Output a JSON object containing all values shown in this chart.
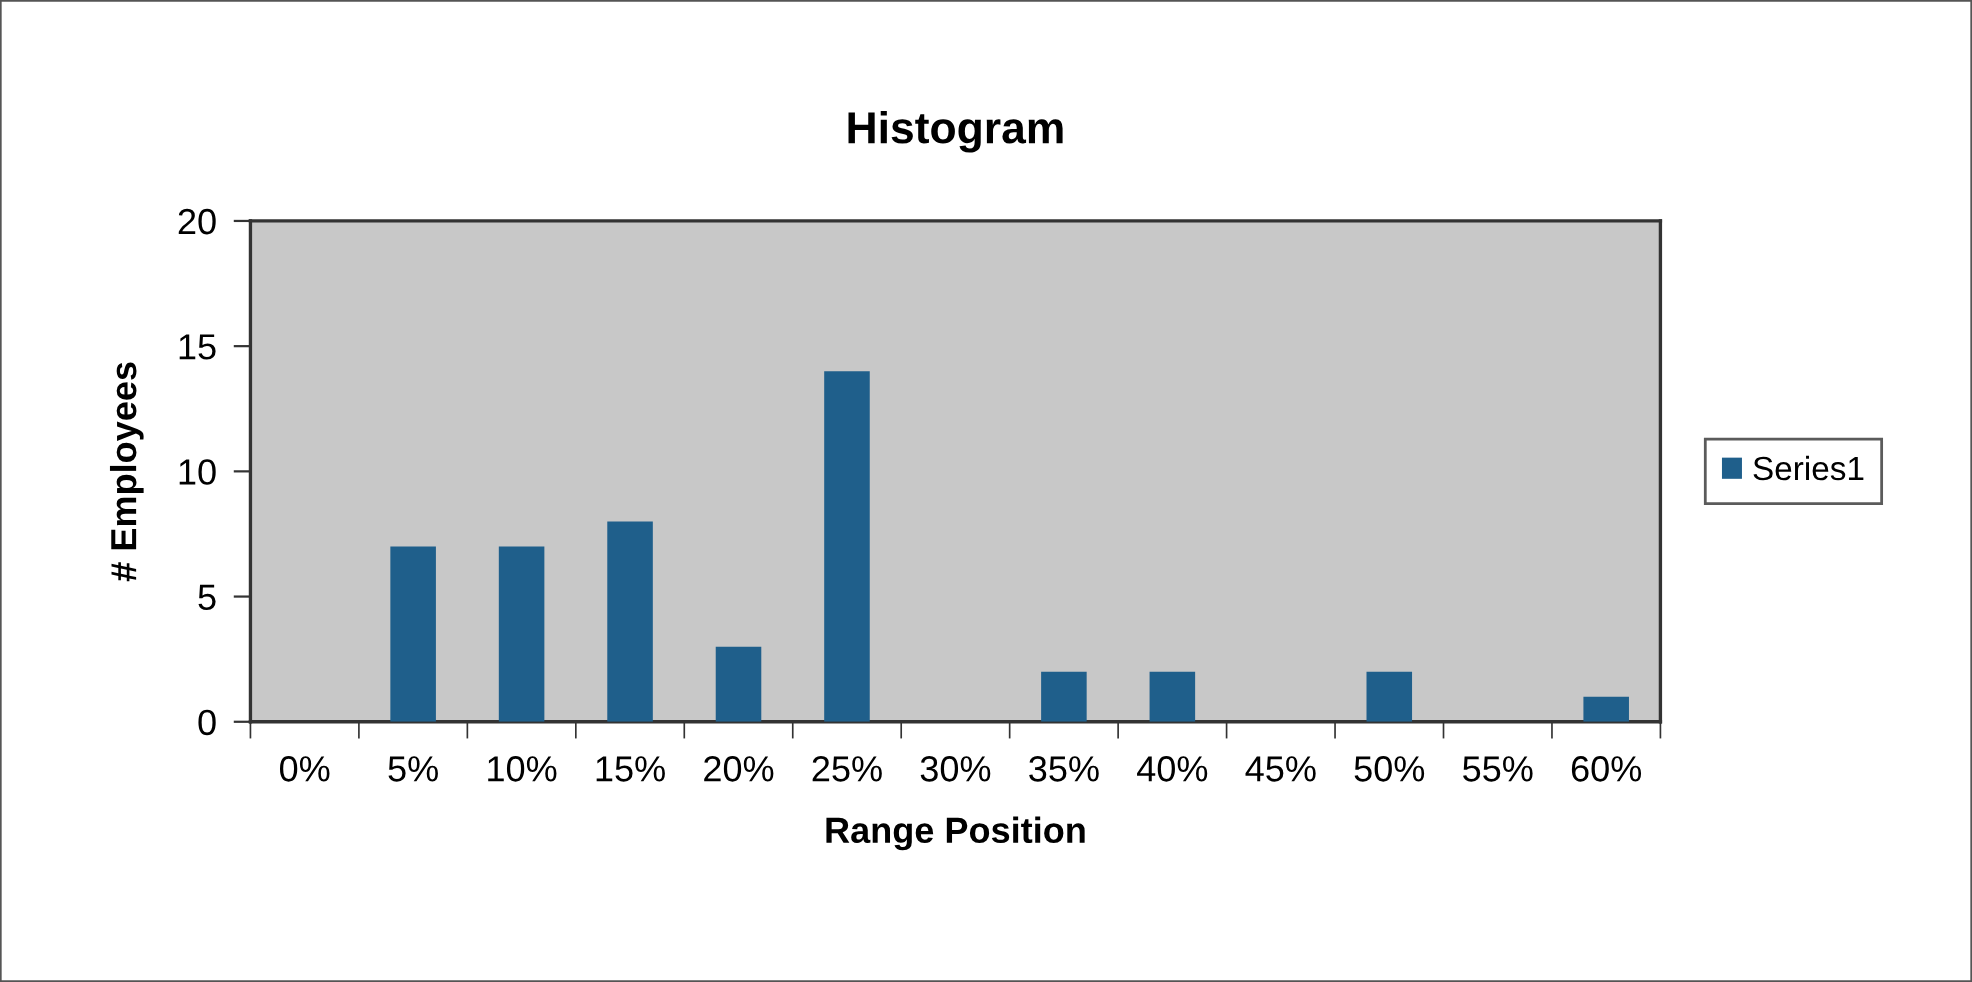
{
  "chart_data": {
    "type": "bar",
    "title": "Histogram",
    "xlabel": "Range Position",
    "ylabel": "# Employees",
    "categories": [
      "0%",
      "5%",
      "10%",
      "15%",
      "20%",
      "25%",
      "30%",
      "35%",
      "40%",
      "45%",
      "50%",
      "55%",
      "60%"
    ],
    "series": [
      {
        "name": "Series1",
        "color": "#1f5f8b",
        "values": [
          0,
          7,
          7,
          8,
          3,
          14,
          0,
          2,
          2,
          0,
          2,
          0,
          1
        ]
      }
    ],
    "ylim": [
      0,
      20
    ],
    "yticks": [
      0,
      5,
      10,
      15,
      20
    ],
    "grid": false,
    "legend": "right"
  }
}
